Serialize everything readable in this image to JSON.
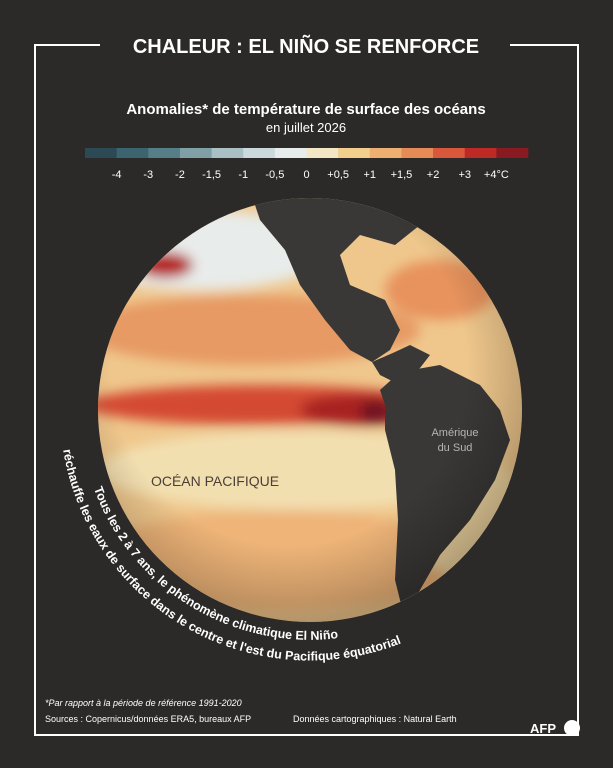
{
  "header": {
    "title": "CHALEUR : EL NIÑO SE RENFORCE"
  },
  "map": {
    "title": "Anomalies* de température de surface des océans",
    "subtitle": "en juillet 2026",
    "legend": {
      "colors": [
        "#2b4a55",
        "#3c6470",
        "#557e88",
        "#7ea0a6",
        "#a8c0c4",
        "#cad9db",
        "#e6eceb",
        "#f3e6c4",
        "#f2cf8d",
        "#eeb070",
        "#e58b56",
        "#d9583c",
        "#bd2a26",
        "#8a1a22"
      ],
      "labels": [
        "-4",
        "-3",
        "-2",
        "-1,5",
        "-1",
        "-0,5",
        "0",
        "+0,5",
        "+1",
        "+1,5",
        "+2",
        "+3",
        "+4°C"
      ]
    },
    "labels": {
      "ocean": "OCÉAN PACIFIQUE",
      "continent": [
        "Amérique",
        "du Sud"
      ]
    },
    "caption": [
      "Tous les 2 à 7 ans, le phénomène climatique El Niño",
      "réchauffe les eaux de surface dans le centre et l'est du Pacifique équatorial"
    ]
  },
  "footer": {
    "note": "*Par rapport à la période de référence 1991-2020",
    "sources": "Sources : Copernicus/données ERA5, bureaux AFP",
    "map_data": "Données cartographiques : Natural Earth",
    "logo": "AFP"
  }
}
